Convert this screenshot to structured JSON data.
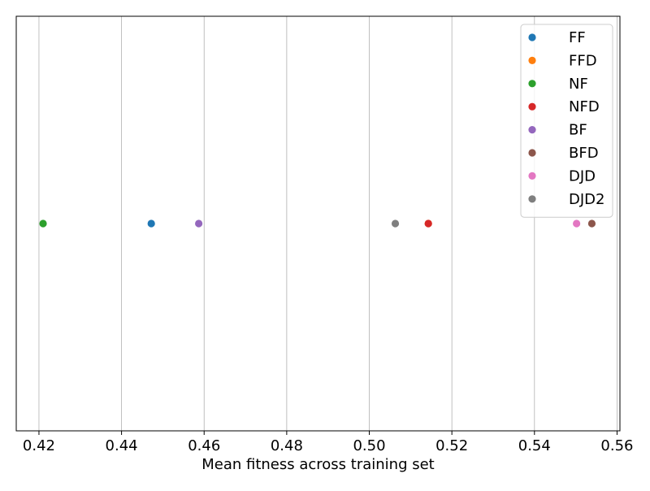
{
  "chart_data": {
    "type": "scatter",
    "title": "",
    "xlabel": "Mean fitness across training set",
    "ylabel": "",
    "xlim": [
      0.4145,
      0.5607
    ],
    "ylim": [
      -0.055,
      0.055
    ],
    "x_ticks": [
      0.42,
      0.44,
      0.46,
      0.48,
      0.5,
      0.52,
      0.54,
      0.56
    ],
    "x_tick_labels": [
      "0.42",
      "0.44",
      "0.46",
      "0.48",
      "0.50",
      "0.52",
      "0.54",
      "0.56"
    ],
    "grid": "vertical",
    "legend_position": "top-right",
    "series": [
      {
        "name": "FF",
        "color": "#1f77b4",
        "points": [
          {
            "x": 0.4472,
            "y": 0
          }
        ]
      },
      {
        "name": "FFD",
        "color": "#ff7f0e",
        "points": [
          {
            "x": 0.5143,
            "y": 0
          }
        ]
      },
      {
        "name": "NF",
        "color": "#2ca02c",
        "points": [
          {
            "x": 0.421,
            "y": 0
          }
        ]
      },
      {
        "name": "NFD",
        "color": "#d62728",
        "points": [
          {
            "x": 0.5143,
            "y": 0
          }
        ]
      },
      {
        "name": "BF",
        "color": "#9467bd",
        "points": [
          {
            "x": 0.4587,
            "y": 0
          }
        ]
      },
      {
        "name": "BFD",
        "color": "#8c564b",
        "points": [
          {
            "x": 0.5539,
            "y": 0
          }
        ]
      },
      {
        "name": "DJD",
        "color": "#e377c2",
        "points": [
          {
            "x": 0.5502,
            "y": 0
          }
        ]
      },
      {
        "name": "DJD2",
        "color": "#7f7f7f",
        "points": [
          {
            "x": 0.5063,
            "y": 0
          }
        ]
      }
    ]
  }
}
